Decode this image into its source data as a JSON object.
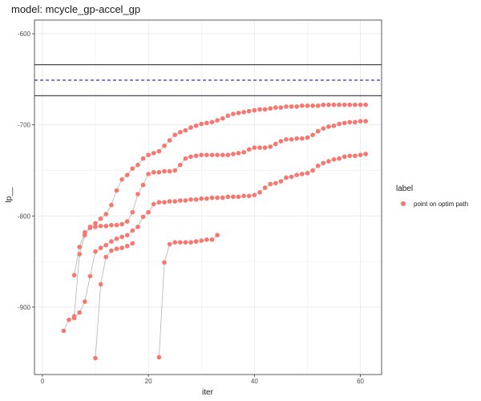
{
  "chart_data": {
    "type": "scatter",
    "title": "model: mcycle_gp-accel_gp",
    "xlabel": "iter",
    "ylabel": "lp__",
    "xlim": [
      -1.5,
      64
    ],
    "ylim": [
      -974,
      -585
    ],
    "xticks": [
      0,
      20,
      40,
      60
    ],
    "yticks": [
      -600,
      -700,
      -800,
      -900
    ],
    "grid": true,
    "legend": {
      "title": "label",
      "position": "right",
      "entries": [
        "point on optim path"
      ]
    },
    "colors": {
      "point": "#f8766d",
      "path": "#b3b3b3",
      "hline": "#333333",
      "dashed": "#0000cc",
      "panel_border": "#333333",
      "grid": "#ebebeb"
    },
    "hlines": [
      {
        "y": -634,
        "style": "solid"
      },
      {
        "y": -651,
        "style": "dashed"
      },
      {
        "y": -668,
        "style": "solid"
      }
    ],
    "series": [
      {
        "name": "point on optim path",
        "points": [
          [
            4,
            -926
          ],
          [
            5,
            -914
          ],
          [
            6,
            -912
          ],
          [
            7,
            -906
          ],
          [
            8,
            -894
          ],
          [
            9,
            -866
          ],
          [
            10,
            -839
          ],
          [
            11,
            -835
          ],
          [
            12,
            -832
          ],
          [
            13,
            -828
          ],
          [
            14,
            -825
          ],
          [
            15,
            -823
          ],
          [
            16,
            -821
          ],
          [
            17,
            -816
          ],
          [
            18,
            -812
          ],
          [
            19,
            -801
          ],
          [
            20,
            -796
          ],
          [
            21,
            -787
          ],
          [
            22,
            -785
          ],
          [
            23,
            -785
          ],
          [
            24,
            -784
          ],
          [
            25,
            -784
          ],
          [
            26,
            -783
          ],
          [
            27,
            -783
          ],
          [
            28,
            -782
          ],
          [
            29,
            -782
          ],
          [
            30,
            -781
          ],
          [
            31,
            -781
          ],
          [
            32,
            -780
          ],
          [
            33,
            -780
          ],
          [
            34,
            -780
          ],
          [
            35,
            -779
          ],
          [
            36,
            -779
          ],
          [
            37,
            -779
          ],
          [
            38,
            -778
          ],
          [
            39,
            -778
          ],
          [
            40,
            -777
          ],
          [
            41,
            -774
          ],
          [
            42,
            -769
          ],
          [
            43,
            -765
          ],
          [
            44,
            -764
          ],
          [
            45,
            -762
          ],
          [
            46,
            -758
          ],
          [
            47,
            -757
          ],
          [
            48,
            -755
          ],
          [
            49,
            -754
          ],
          [
            50,
            -753
          ],
          [
            51,
            -750
          ],
          [
            52,
            -745
          ],
          [
            53,
            -742
          ],
          [
            54,
            -740
          ],
          [
            55,
            -738
          ],
          [
            56,
            -737
          ],
          [
            57,
            -735
          ],
          [
            58,
            -734
          ],
          [
            59,
            -734
          ],
          [
            60,
            -733
          ],
          [
            61,
            -732
          ]
        ]
      },
      {
        "name": "point on optim path",
        "points": [
          [
            6,
            -910
          ],
          [
            7,
            -842
          ],
          [
            8,
            -821
          ],
          [
            9,
            -813
          ],
          [
            10,
            -812
          ],
          [
            11,
            -811
          ],
          [
            12,
            -811
          ],
          [
            13,
            -810
          ],
          [
            14,
            -810
          ],
          [
            15,
            -809
          ],
          [
            16,
            -806
          ],
          [
            17,
            -796
          ],
          [
            18,
            -776
          ],
          [
            19,
            -766
          ],
          [
            20,
            -754
          ],
          [
            21,
            -752
          ],
          [
            22,
            -752
          ],
          [
            23,
            -751
          ],
          [
            24,
            -751
          ],
          [
            25,
            -750
          ],
          [
            26,
            -744
          ],
          [
            27,
            -737
          ],
          [
            28,
            -735
          ],
          [
            29,
            -734
          ],
          [
            30,
            -733
          ],
          [
            31,
            -733
          ],
          [
            32,
            -733
          ],
          [
            33,
            -733
          ],
          [
            34,
            -733
          ],
          [
            35,
            -733
          ],
          [
            36,
            -732
          ],
          [
            37,
            -731
          ],
          [
            38,
            -730
          ],
          [
            39,
            -727
          ],
          [
            40,
            -725
          ],
          [
            41,
            -725
          ],
          [
            42,
            -725
          ],
          [
            43,
            -724
          ],
          [
            44,
            -721
          ],
          [
            45,
            -718
          ],
          [
            46,
            -716
          ],
          [
            47,
            -716
          ],
          [
            48,
            -715
          ],
          [
            49,
            -715
          ],
          [
            50,
            -714
          ],
          [
            51,
            -711
          ],
          [
            52,
            -707
          ],
          [
            53,
            -704
          ],
          [
            54,
            -702
          ],
          [
            55,
            -701
          ],
          [
            56,
            -699
          ],
          [
            57,
            -698
          ],
          [
            58,
            -697
          ],
          [
            59,
            -697
          ],
          [
            60,
            -696
          ],
          [
            61,
            -696
          ]
        ]
      },
      {
        "name": "point on optim path",
        "points": [
          [
            6,
            -865
          ],
          [
            7,
            -834
          ],
          [
            8,
            -818
          ],
          [
            9,
            -812
          ],
          [
            10,
            -808
          ],
          [
            11,
            -803
          ],
          [
            12,
            -798
          ],
          [
            13,
            -788
          ],
          [
            14,
            -772
          ],
          [
            15,
            -760
          ],
          [
            16,
            -755
          ],
          [
            17,
            -748
          ],
          [
            18,
            -744
          ],
          [
            19,
            -737
          ],
          [
            20,
            -733
          ],
          [
            21,
            -731
          ],
          [
            22,
            -729
          ],
          [
            23,
            -723
          ],
          [
            24,
            -717
          ],
          [
            25,
            -711
          ],
          [
            26,
            -708
          ],
          [
            27,
            -706
          ],
          [
            28,
            -703
          ],
          [
            29,
            -701
          ],
          [
            30,
            -699
          ],
          [
            31,
            -698
          ],
          [
            32,
            -697
          ],
          [
            33,
            -695
          ],
          [
            34,
            -693
          ],
          [
            35,
            -690
          ],
          [
            36,
            -688
          ],
          [
            37,
            -687
          ],
          [
            38,
            -686
          ],
          [
            39,
            -685
          ],
          [
            40,
            -684
          ],
          [
            41,
            -683
          ],
          [
            42,
            -683
          ],
          [
            43,
            -682
          ],
          [
            44,
            -681
          ],
          [
            45,
            -681
          ],
          [
            46,
            -680
          ],
          [
            47,
            -680
          ],
          [
            48,
            -680
          ],
          [
            49,
            -679
          ],
          [
            50,
            -679
          ],
          [
            51,
            -679
          ],
          [
            52,
            -679
          ],
          [
            53,
            -678
          ],
          [
            54,
            -678
          ],
          [
            55,
            -678
          ],
          [
            56,
            -678
          ],
          [
            57,
            -678
          ],
          [
            58,
            -678
          ],
          [
            59,
            -678
          ],
          [
            60,
            -678
          ],
          [
            61,
            -678
          ]
        ]
      },
      {
        "name": "point on optim path",
        "points": [
          [
            10,
            -956
          ],
          [
            11,
            -875
          ],
          [
            12,
            -845
          ],
          [
            13,
            -838
          ],
          [
            14,
            -836
          ],
          [
            15,
            -835
          ],
          [
            16,
            -833
          ],
          [
            17,
            -830
          ]
        ]
      },
      {
        "name": "point on optim path",
        "points": [
          [
            22,
            -955
          ],
          [
            23,
            -851
          ],
          [
            24,
            -831
          ],
          [
            25,
            -829
          ],
          [
            26,
            -829
          ],
          [
            27,
            -829
          ],
          [
            28,
            -829
          ],
          [
            29,
            -828
          ],
          [
            30,
            -827
          ],
          [
            31,
            -826
          ],
          [
            32,
            -826
          ],
          [
            33,
            -821
          ]
        ]
      }
    ]
  }
}
